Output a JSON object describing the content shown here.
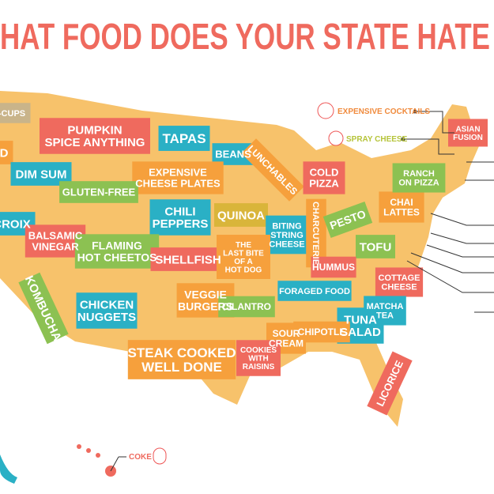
{
  "title": "HAT FOOD DOES YOUR STATE HATE",
  "map": {
    "labels": [
      [
        "-CUPS"
      ],
      [
        "PUMPKIN",
        "SPICE ANYTHING"
      ],
      [
        "TAPAS"
      ],
      [
        "BEANS"
      ],
      [
        "D"
      ],
      [
        "DIM SUM"
      ],
      [
        "EXPENSIVE",
        "CHEESE PLATES"
      ],
      [
        "LUNCHABLES"
      ],
      [
        "COLD",
        "PIZZA"
      ],
      [
        "GLUTEN-FREE"
      ],
      [
        "CROIX"
      ],
      [
        "BALSAMIC",
        "VINEGAR"
      ],
      [
        "CHILI",
        "PEPPERS"
      ],
      [
        "QUINOA"
      ],
      [
        "BITING",
        "STRING",
        "CHEESE"
      ],
      [
        "CHARCUTERIE"
      ],
      [
        "PESTO"
      ],
      [
        "CHAI",
        "LATTES"
      ],
      [
        "TOFU"
      ],
      [
        "FLAMING",
        "HOT CHEETOS"
      ],
      [
        "SHELLFISH"
      ],
      [
        "THE",
        "LAST BITE",
        "OF A",
        "HOT DOG"
      ],
      [
        "HUMMUS"
      ],
      [
        "KOMBUCHA"
      ],
      [
        "VEGGIE",
        "BURGERS"
      ],
      [
        "CILANTRO"
      ],
      [
        "FORAGED FOOD"
      ],
      [
        "COTTAGE",
        "CHEESE"
      ],
      [
        "CHICKEN",
        "NUGGETS"
      ],
      [
        "MATCHA",
        "TEA"
      ],
      [
        "TUNA",
        "SALAD"
      ],
      [
        "SOUR",
        "CREAM"
      ],
      [
        "CHIPOTLE"
      ],
      [
        "STEAK COOKED",
        "WELL DONE"
      ],
      [
        "COOKIES",
        "WITH",
        "RAISINS"
      ],
      [
        "LICORICE"
      ],
      [
        "ASIAN",
        "FUSION"
      ],
      [
        "RANCH",
        "ON PIZZA"
      ]
    ],
    "callouts": [
      "EXPENSIVE COCKTAILS",
      "SPRAY CHEESE",
      "COKE"
    ]
  }
}
